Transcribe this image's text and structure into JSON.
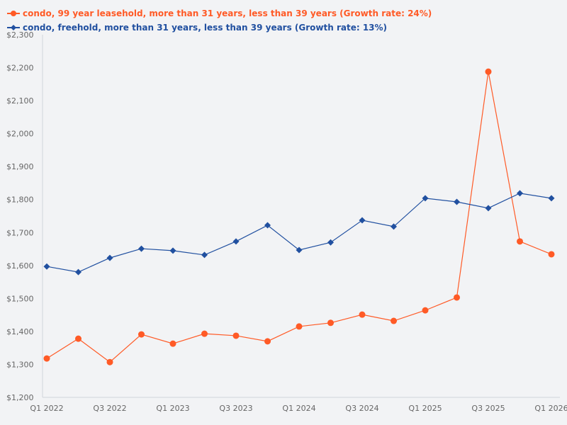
{
  "chart_data": {
    "type": "line",
    "title": "",
    "xlabel": "",
    "ylabel": "",
    "ylim": [
      1200,
      2300
    ],
    "grid": false,
    "legend_position": "top-left",
    "y_ticks": [
      "$1,200",
      "$1,300",
      "$1,400",
      "$1,500",
      "$1,600",
      "$1,700",
      "$1,800",
      "$1,900",
      "$2,000",
      "$2,100",
      "$2,200",
      "$2,300"
    ],
    "y_tick_values": [
      1200,
      1300,
      1400,
      1500,
      1600,
      1700,
      1800,
      1900,
      2000,
      2100,
      2200,
      2300
    ],
    "categories": [
      "Q1 2022",
      "Q2 2022",
      "Q3 2022",
      "Q4 2022",
      "Q1 2023",
      "Q2 2023",
      "Q3 2023",
      "Q4 2023",
      "Q1 2024",
      "Q2 2024",
      "Q3 2024",
      "Q4 2024",
      "Q1 2025",
      "Q2 2025",
      "Q3 2025",
      "Q4 2025",
      "Q1 2026"
    ],
    "x_tick_labels": [
      "Q1 2022",
      "Q3 2022",
      "Q1 2023",
      "Q3 2023",
      "Q1 2024",
      "Q3 2024",
      "Q1 2025",
      "Q3 2025",
      "Q1 2026"
    ],
    "series": [
      {
        "name": "condo, 99 year leasehold, more than 31 years, less than 39 years (Growth rate: 24%)",
        "color": "#ff5a26",
        "marker": "circle",
        "values": [
          1318,
          1378,
          1307,
          1391,
          1363,
          1393,
          1387,
          1370,
          1415,
          1426,
          1451,
          1432,
          1464,
          1503,
          2188,
          1673,
          1634
        ]
      },
      {
        "name": "condo, freehold, more than 31 years, less than 39 years (Growth rate: 13%)",
        "color": "#2150a0",
        "marker": "diamond",
        "values": [
          1597,
          1580,
          1623,
          1651,
          1645,
          1632,
          1673,
          1722,
          1647,
          1670,
          1737,
          1718,
          1804,
          1793,
          1774,
          1819,
          1804
        ]
      }
    ]
  }
}
